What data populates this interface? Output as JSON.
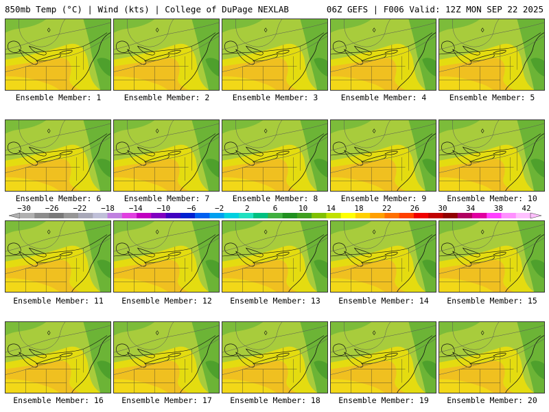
{
  "header": {
    "title_left": "850mb Temp (°C) | Wind (kts) | College of DuPage NEXLAB",
    "title_right": "06Z GEFS | F006 Valid: 12Z MON SEP 22 2025"
  },
  "panels": [
    {
      "label": "Ensemble Member: 1"
    },
    {
      "label": "Ensemble Member: 2"
    },
    {
      "label": "Ensemble Member: 3"
    },
    {
      "label": "Ensemble Member: 4"
    },
    {
      "label": "Ensemble Member: 5"
    },
    {
      "label": "Ensemble Member: 6"
    },
    {
      "label": "Ensemble Member: 7"
    },
    {
      "label": "Ensemble Member: 8"
    },
    {
      "label": "Ensemble Member: 9"
    },
    {
      "label": "Ensemble Member: 10"
    },
    {
      "label": "Ensemble Member: 11"
    },
    {
      "label": "Ensemble Member: 12"
    },
    {
      "label": "Ensemble Member: 13"
    },
    {
      "label": "Ensemble Member: 14"
    },
    {
      "label": "Ensemble Member: 15"
    },
    {
      "label": "Ensemble Member: 16"
    },
    {
      "label": "Ensemble Member: 17"
    },
    {
      "label": "Ensemble Member: 18"
    },
    {
      "label": "Ensemble Member: 19"
    },
    {
      "label": "Ensemble Member: 20"
    }
  ],
  "colorbar": {
    "tick_labels": [
      "−30",
      "−26",
      "−22",
      "−18",
      "−14",
      "−10",
      "−6",
      "−2",
      "2",
      "6",
      "10",
      "14",
      "18",
      "22",
      "26",
      "30",
      "34",
      "38",
      "42"
    ],
    "colors": [
      "#b0b0b0",
      "#8c8c8c",
      "#787878",
      "#969696",
      "#a8a8b8",
      "#bfbfd8",
      "#c080e0",
      "#e040e0",
      "#c000c0",
      "#8000c0",
      "#4000c0",
      "#0020d0",
      "#0060f0",
      "#00a0f0",
      "#00d0e0",
      "#20e0c0",
      "#00c080",
      "#40b040",
      "#209020",
      "#40a020",
      "#80c000",
      "#c0e000",
      "#ffff00",
      "#ffd000",
      "#ffa000",
      "#ff7000",
      "#ff4000",
      "#f00000",
      "#c00000",
      "#900000",
      "#b00060",
      "#e000a0",
      "#ff40ff",
      "#ff90ff",
      "#ffc0ff"
    ]
  }
}
